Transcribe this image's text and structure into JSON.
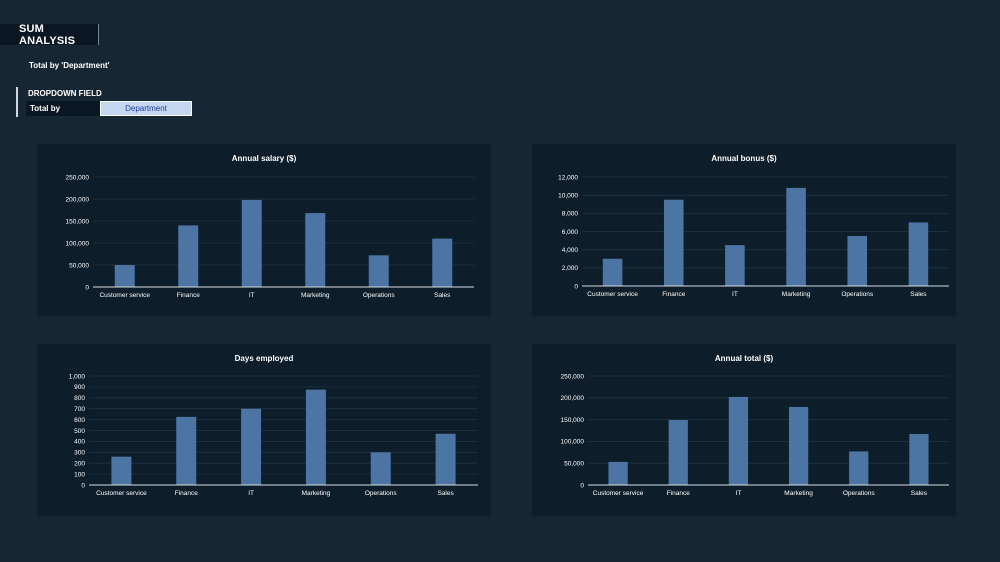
{
  "header": {
    "title": "SUM ANALYSIS",
    "subtitle": "Total by 'Department'"
  },
  "dropdown": {
    "heading": "DROPDOWN FIELD",
    "label": "Total by",
    "selected": "Department"
  },
  "colors": {
    "bar": "#4c75a3",
    "panel": "#0d1d2a",
    "background": "#172633",
    "gridline": "#1f3443",
    "axis": "#d9dde1"
  },
  "chart_data": [
    {
      "type": "bar",
      "title": "Annual salary ($)",
      "categories": [
        "Customer service",
        "Finance",
        "IT",
        "Marketing",
        "Operations",
        "Sales"
      ],
      "values": [
        50000,
        140000,
        198000,
        168000,
        72000,
        110000
      ],
      "ylim": [
        0,
        250000
      ],
      "yticks": [
        0,
        50000,
        100000,
        150000,
        200000,
        250000
      ],
      "ytick_labels": [
        "0",
        "50,000",
        "100,000",
        "150,000",
        "200,000",
        "250,000"
      ],
      "grid": true
    },
    {
      "type": "bar",
      "title": "Annual bonus ($)",
      "categories": [
        "Customer service",
        "Finance",
        "IT",
        "Marketing",
        "Operations",
        "Sales"
      ],
      "values": [
        3000,
        9500,
        4500,
        10800,
        5500,
        7000
      ],
      "ylim": [
        0,
        12000
      ],
      "yticks": [
        0,
        2000,
        4000,
        6000,
        8000,
        10000,
        12000
      ],
      "ytick_labels": [
        "0",
        "2,000",
        "4,000",
        "6,000",
        "8,000",
        "10,000",
        "12,000"
      ],
      "grid": true
    },
    {
      "type": "bar",
      "title": "Days employed",
      "categories": [
        "Customer service",
        "Finance",
        "IT",
        "Marketing",
        "Operations",
        "Sales"
      ],
      "values": [
        260,
        625,
        700,
        875,
        300,
        470
      ],
      "ylim": [
        0,
        1000
      ],
      "yticks": [
        0,
        100,
        200,
        300,
        400,
        500,
        600,
        700,
        800,
        900,
        1000
      ],
      "ytick_labels": [
        "0",
        "100",
        "200",
        "300",
        "400",
        "500",
        "600",
        "700",
        "800",
        "900",
        "1,000"
      ],
      "grid": true
    },
    {
      "type": "bar",
      "title": "Annual total ($)",
      "categories": [
        "Customer service",
        "Finance",
        "IT",
        "Marketing",
        "Operations",
        "Sales"
      ],
      "values": [
        53000,
        149000,
        202000,
        179000,
        77000,
        117000
      ],
      "ylim": [
        0,
        250000
      ],
      "yticks": [
        0,
        50000,
        100000,
        150000,
        200000,
        250000
      ],
      "ytick_labels": [
        "0",
        "50,000",
        "100,000",
        "150,000",
        "200,000",
        "250,000"
      ],
      "grid": true
    }
  ]
}
